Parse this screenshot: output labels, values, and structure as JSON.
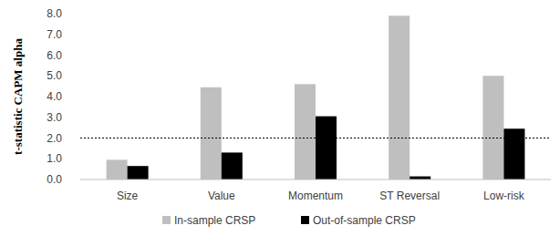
{
  "chart_data": {
    "type": "bar",
    "y_label": "t-statistic CAPM alpha",
    "categories": [
      "Size",
      "Value",
      "Momentum",
      "ST Reversal",
      "Low-risk"
    ],
    "series": [
      {
        "name": "In-sample CRSP",
        "color": "#bfbfbf",
        "values": [
          0.95,
          4.45,
          4.6,
          7.9,
          5.0
        ]
      },
      {
        "name": "Out-of-sample CRSP",
        "color": "#000000",
        "values": [
          0.65,
          1.3,
          3.05,
          0.15,
          2.45
        ]
      }
    ],
    "ylim": [
      0,
      8
    ],
    "yticks": [
      {
        "value": 0,
        "label": "0.0"
      },
      {
        "value": 1,
        "label": "1.0"
      },
      {
        "value": 2,
        "label": "2.0"
      },
      {
        "value": 3,
        "label": "3.0"
      },
      {
        "value": 4,
        "label": "4.0"
      },
      {
        "value": 5,
        "label": "5.0"
      },
      {
        "value": 6,
        "label": "6.0"
      },
      {
        "value": 7,
        "label": "7.0"
      },
      {
        "value": 8,
        "label": "8.0"
      }
    ],
    "threshold": 2.0,
    "grid": false,
    "legend": "bottom"
  }
}
